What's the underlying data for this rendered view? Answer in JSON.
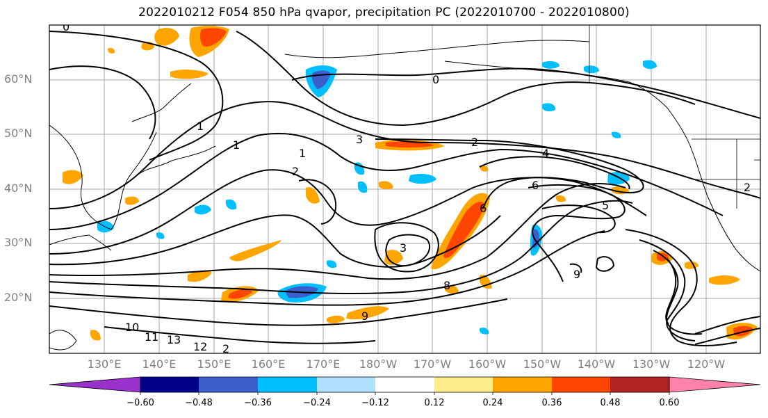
{
  "title": "2022010212 F054 850 hPa qvapor, precipitation PC (2022010700 - 2022010800)",
  "map": {
    "projection": "cylindrical",
    "lon_range": [
      "120°E",
      "115°W"
    ],
    "lat_range": [
      "~10°N",
      "~70°N"
    ],
    "gridlines": true,
    "lat_labels": [
      "60°N",
      "50°N",
      "40°N",
      "30°N",
      "20°N"
    ],
    "lon_labels": [
      "130°E",
      "140°E",
      "150°E",
      "160°E",
      "170°E",
      "180°W",
      "170°W",
      "160°W",
      "150°W",
      "140°W",
      "130°W",
      "120°W"
    ],
    "contour_field": "850 hPa qvapor",
    "contour_labels": [
      "0",
      "1",
      "1",
      "2",
      "2",
      "3",
      "3",
      "4",
      "5",
      "6",
      "6",
      "8",
      "9",
      "9",
      "10",
      "11",
      "13",
      "12",
      "2",
      "0",
      "1",
      "2"
    ],
    "shaded_field": "precipitation PC"
  },
  "colorbar": {
    "orientation": "horizontal",
    "extend": "both",
    "ticks": [
      "−0.60",
      "−0.48",
      "−0.36",
      "−0.24",
      "−0.12",
      "0.12",
      "0.24",
      "0.36",
      "0.48",
      "0.60"
    ],
    "colors": [
      "#9932cc",
      "#00008b",
      "#3a5fcd",
      "#00bfff",
      "#b0e2ff",
      "#ffffff",
      "#ffec8b",
      "#ffa500",
      "#ff4500",
      "#b22222",
      "#ff82ab"
    ]
  }
}
